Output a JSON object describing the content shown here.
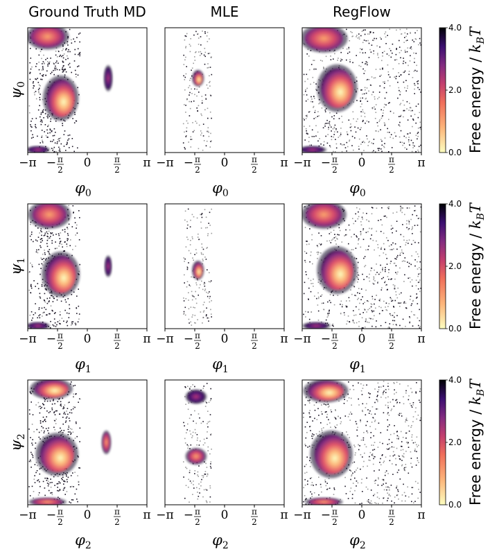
{
  "columns": [
    "Ground Truth MD",
    "MLE",
    "RegFlow"
  ],
  "chart_data": {
    "type": "heatmap",
    "column_titles": [
      "Ground Truth MD",
      "MLE",
      "RegFlow"
    ],
    "x_tick_labels": [
      "−π",
      "−π/2",
      "0",
      "π/2",
      "π"
    ],
    "x_tick_values": [
      -3.1416,
      -1.5708,
      0,
      1.5708,
      3.1416
    ],
    "xlim": [
      -3.1416,
      3.1416
    ],
    "ylim": [
      -3.1416,
      3.1416
    ],
    "colormap": "magma_r",
    "colorbar": {
      "label": "Free energy / k_BT",
      "ticks": [
        "0.0",
        "2.0",
        "4.0"
      ],
      "range": [
        0,
        4
      ]
    },
    "rows": [
      {
        "xlabel": "φ0",
        "ylabel": "ψ0"
      },
      {
        "xlabel": "φ1",
        "ylabel": "ψ1"
      },
      {
        "xlabel": "φ2",
        "ylabel": "ψ2"
      }
    ]
  },
  "colors": {
    "low": "#fcfdbf",
    "high": "#000004"
  }
}
